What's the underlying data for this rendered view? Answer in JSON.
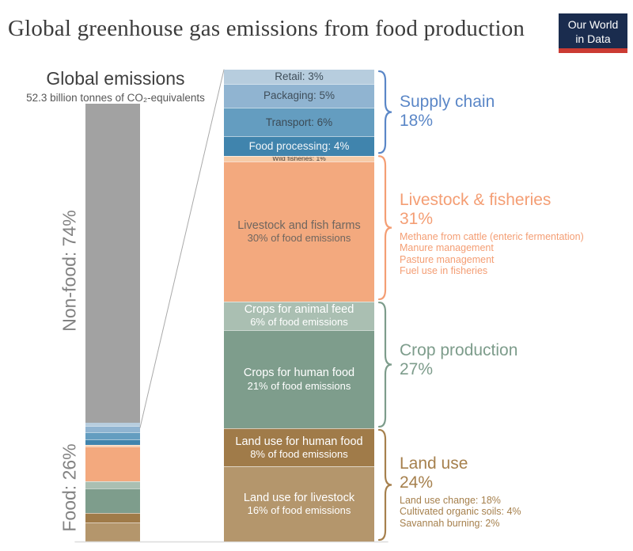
{
  "header": {
    "title": "Global greenhouse gas emissions from food production",
    "logo_line1": "Our World",
    "logo_line2": "in Data",
    "logo_bg": "#1a2c4e",
    "logo_stripe": "#cb3b33"
  },
  "chart_data": {
    "type": "stacked-bar",
    "title": "Global greenhouse gas emissions from food production",
    "global_total": {
      "label": "Global emissions",
      "sublabel": "52.3 billion tonnes of CO₂-equivalents",
      "value_billion_tonnes": 52.3,
      "non_food_label": "Non-food: 74%",
      "food_label": "Food: 26%",
      "non_food_pct": 74,
      "food_pct": 26,
      "non_food_color": "#a2a2a2"
    },
    "food_segments": [
      {
        "id": "retail",
        "label": "Retail: 3%",
        "sub": null,
        "pct": 3,
        "color": "#b7cdde",
        "text_color": "#3f4e5a",
        "single": true
      },
      {
        "id": "packaging",
        "label": "Packaging: 5%",
        "sub": null,
        "pct": 5,
        "color": "#90b4d1",
        "text_color": "#3f4e5a",
        "single": true
      },
      {
        "id": "transport",
        "label": "Transport: 6%",
        "sub": null,
        "pct": 6,
        "color": "#649dc0",
        "text_color": "#3b4a55",
        "single": true
      },
      {
        "id": "food-processing",
        "label": "Food processing: 4%",
        "sub": null,
        "pct": 4,
        "color": "#4084ad",
        "text_color": "#f2f6f9",
        "single": true
      },
      {
        "id": "wild-fisheries",
        "label": "Wild fisheries: 1%",
        "sub": null,
        "pct": 1,
        "color": "#f6cba7",
        "text_color": "#4a423c",
        "tiny": true
      },
      {
        "id": "livestock-farms",
        "label": "Livestock and fish farms",
        "sub": "30% of food emissions",
        "pct": 30,
        "color": "#f3a97e",
        "text_color": "#6f665f"
      },
      {
        "id": "crops-feed",
        "label": "Crops for animal feed",
        "sub": "6% of food emissions",
        "pct": 6,
        "color": "#aabfb2",
        "text_color": "#ffffff"
      },
      {
        "id": "crops-human",
        "label": "Crops for human food",
        "sub": "21% of food emissions",
        "pct": 21,
        "color": "#7e9d8c",
        "text_color": "#ffffff"
      },
      {
        "id": "land-human",
        "label": "Land use for human food",
        "sub": "8% of food emissions",
        "pct": 8,
        "color": "#a07b49",
        "text_color": "#ffffff"
      },
      {
        "id": "land-livestock",
        "label": "Land use for livestock",
        "sub": "16% of food emissions",
        "pct": 16,
        "color": "#b4966c",
        "text_color": "#ffffff"
      }
    ],
    "groups": [
      {
        "id": "supply",
        "label": "Supply chain",
        "value_label": "18%",
        "pct_start": 0,
        "pct_end": 18,
        "color": "#5b87c7",
        "items": []
      },
      {
        "id": "livestock",
        "label": "Livestock & fisheries",
        "value_label": "31%",
        "pct_start": 18,
        "pct_end": 49,
        "color": "#f49e74",
        "items": [
          "Methane from cattle (enteric fermentation)",
          "Manure management",
          "Pasture management",
          "Fuel use in fisheries"
        ]
      },
      {
        "id": "crop",
        "label": "Crop production",
        "value_label": "27%",
        "pct_start": 49,
        "pct_end": 76,
        "color": "#7d9c8b",
        "items": []
      },
      {
        "id": "land",
        "label": "Land use",
        "value_label": "24%",
        "pct_start": 76,
        "pct_end": 100,
        "color": "#a6804d",
        "items": [
          "Land use change: 18%",
          "Cultivated organic soils: 4%",
          "Savannah burning: 2%"
        ]
      }
    ],
    "layout_hints": {
      "left_bar_represents": "total global emissions",
      "right_bar_represents": "food emissions (26% of global) broken down to 100%",
      "grid": false,
      "legend": "none"
    }
  }
}
